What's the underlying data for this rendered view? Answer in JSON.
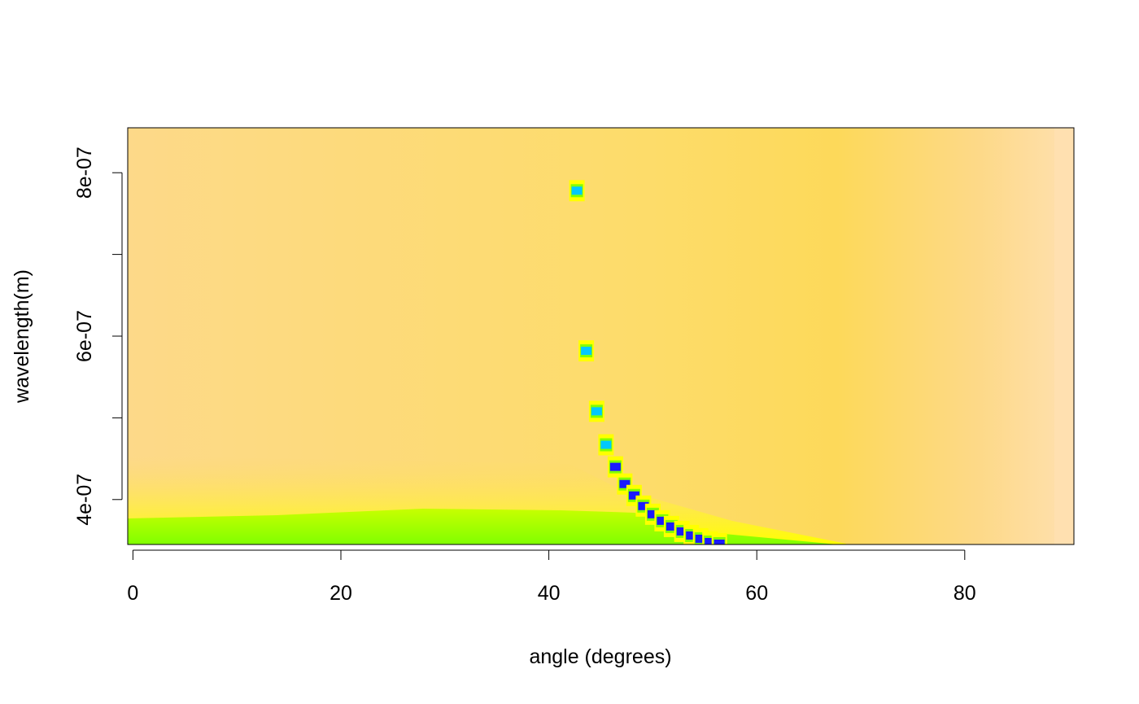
{
  "chart_data": {
    "type": "heatmap",
    "title": "",
    "xlabel": "angle (degrees)",
    "ylabel": "wavelength(m)",
    "xlim": [
      -0.5,
      90.5
    ],
    "ylim": [
      3.45e-07,
      8.55e-07
    ],
    "x_ticks": [
      {
        "value": 0,
        "label": "0"
      },
      {
        "value": 20,
        "label": "20"
      },
      {
        "value": 40,
        "label": "40"
      },
      {
        "value": 60,
        "label": "60"
      },
      {
        "value": 80,
        "label": "80"
      }
    ],
    "y_ticks": [
      {
        "value": 4e-07,
        "label": "4e-07"
      },
      {
        "value": 5e-07,
        "label": ""
      },
      {
        "value": 6e-07,
        "label": "6e-07"
      },
      {
        "value": 7e-07,
        "label": ""
      },
      {
        "value": 8e-07,
        "label": "8e-07"
      }
    ],
    "colors": {
      "background": "#fddb8a",
      "pale_edge": "#ffe0b0",
      "yellow": "#ffff00",
      "green": "#80ff00",
      "cyan": "#00c8ff",
      "blue": "#1a1aff"
    },
    "minimum_curve": [
      {
        "x": 42.7,
        "y": 7.78e-07
      },
      {
        "x": 43.6,
        "y": 5.82e-07
      },
      {
        "x": 44.6,
        "y": 5.08e-07
      },
      {
        "x": 45.5,
        "y": 4.67e-07
      },
      {
        "x": 46.4,
        "y": 4.4e-07
      },
      {
        "x": 47.3,
        "y": 4.19e-07
      },
      {
        "x": 48.2,
        "y": 4.05e-07
      },
      {
        "x": 49.1,
        "y": 3.92e-07
      },
      {
        "x": 50.0,
        "y": 3.82e-07
      },
      {
        "x": 50.9,
        "y": 3.74e-07
      },
      {
        "x": 51.8,
        "y": 3.67e-07
      },
      {
        "x": 52.8,
        "y": 3.61e-07
      },
      {
        "x": 53.7,
        "y": 3.56e-07
      },
      {
        "x": 54.6,
        "y": 3.52e-07
      },
      {
        "x": 55.5,
        "y": 3.48e-07
      },
      {
        "x": 56.4,
        "y": 3.46e-07
      }
    ],
    "grid": false,
    "legend": "none"
  }
}
